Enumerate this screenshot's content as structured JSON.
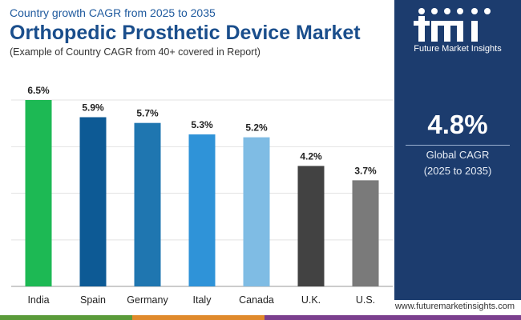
{
  "header": {
    "subtitle": "Country growth CAGR from 2025 to 2035",
    "title": "Orthopedic Prosthetic Device Market",
    "note": "(Example of Country CAGR from 40+ covered in Report)"
  },
  "side_panel": {
    "logo_text": "Future Market Insights",
    "cagr_value": "4.8%",
    "cagr_label": "Global CAGR",
    "cagr_period": "(2025 to 2035)"
  },
  "footer": {
    "url": "www.futuremarketinsights.com"
  },
  "colors": {
    "title": "#1a4e8c",
    "panel": "#1c3c6e",
    "footer_stripe": [
      "#5a9b3a",
      "#e08a2c",
      "#7b3f8e"
    ]
  },
  "chart_data": {
    "type": "bar",
    "categories": [
      "India",
      "Spain",
      "Germany",
      "Italy",
      "Canada",
      "U.K.",
      "U.S."
    ],
    "values": [
      6.5,
      5.9,
      5.7,
      5.3,
      5.2,
      4.2,
      3.7
    ],
    "data_labels": [
      "6.5%",
      "5.9%",
      "5.7%",
      "5.3%",
      "5.2%",
      "4.2%",
      "3.7%"
    ],
    "bar_colors": [
      "#1db954",
      "#0d5a95",
      "#1f76b0",
      "#2f93d8",
      "#7fbce4",
      "#424242",
      "#7a7a7a"
    ],
    "ylim": [
      0,
      6.5
    ],
    "grid": true
  }
}
